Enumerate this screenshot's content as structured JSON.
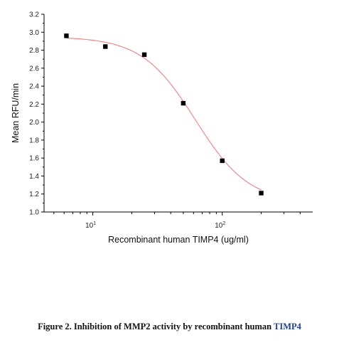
{
  "chart_data": {
    "type": "scatter",
    "title": "",
    "xlabel": "Recombinant human TIMP4 (ug/ml)",
    "ylabel": "Mean RFU/min",
    "x_scale": "log",
    "xlim": [
      4.2,
      500
    ],
    "ylim": [
      1.0,
      3.2
    ],
    "xticks": [
      {
        "value": 10,
        "base": "10",
        "exp": "1"
      },
      {
        "value": 100,
        "base": "10",
        "exp": "2"
      }
    ],
    "yticks": [
      "1.0",
      "1.2",
      "1.4",
      "1.6",
      "1.8",
      "2.0",
      "2.2",
      "2.4",
      "2.6",
      "2.8",
      "3.0",
      "3.2"
    ],
    "series": [
      {
        "marker": "square",
        "color": "#000000",
        "x": [
          6.25,
          12.5,
          25,
          50,
          100,
          200
        ],
        "y": [
          2.96,
          2.84,
          2.75,
          2.21,
          1.57,
          1.21
        ]
      }
    ],
    "fit": {
      "type": "4PL",
      "color": "#f08080",
      "top": 2.95,
      "bottom": 1.1,
      "ec50": 62,
      "hill": 2.1
    },
    "grid": false,
    "legend": "none"
  },
  "caption": {
    "main": "Figure 2. Inhibition of MMP2 activity by recombinant human ",
    "highlight": "TIMP4"
  }
}
